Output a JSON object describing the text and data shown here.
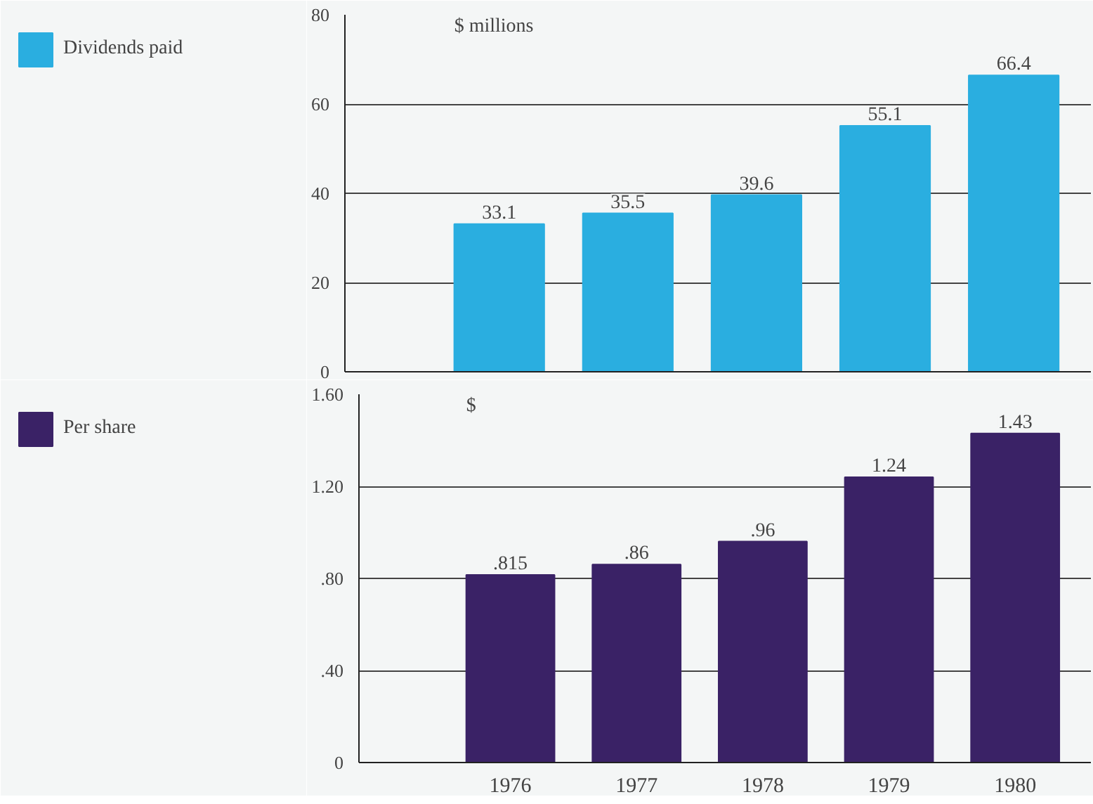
{
  "chart_data": [
    {
      "type": "bar",
      "ylabel": "$ millions",
      "categories": [
        "1976",
        "1977",
        "1978",
        "1979",
        "1980"
      ],
      "series": [
        {
          "name": "Dividends paid",
          "color": "#2aaee0",
          "values": [
            33.1,
            35.5,
            39.6,
            55.1,
            66.4
          ]
        }
      ],
      "ylim": [
        0,
        80
      ],
      "yticks": [
        0,
        20,
        40,
        60,
        80
      ],
      "grid": "y",
      "legend": "left",
      "data_labels": true,
      "tick_labels": "y"
    },
    {
      "type": "bar",
      "ylabel": "$",
      "categories": [
        "1976",
        "1977",
        "1978",
        "1979",
        "1980"
      ],
      "series": [
        {
          "name": "Per share",
          "color": "#3a2266",
          "values": [
            0.815,
            0.86,
            0.96,
            1.24,
            1.43
          ],
          "value_labels": [
            ".815",
            ".86",
            ".96",
            "1.24",
            "1.43"
          ]
        }
      ],
      "ylim": [
        0,
        1.6
      ],
      "yticks": [
        {
          "value": 0,
          "label": "0"
        },
        {
          "value": 0.4,
          "label": ".40"
        },
        {
          "value": 0.8,
          "label": ".80"
        },
        {
          "value": 1.2,
          "label": "1.20"
        },
        {
          "value": 1.6,
          "label": "1.60"
        }
      ],
      "grid": "y",
      "legend": "left"
    }
  ]
}
